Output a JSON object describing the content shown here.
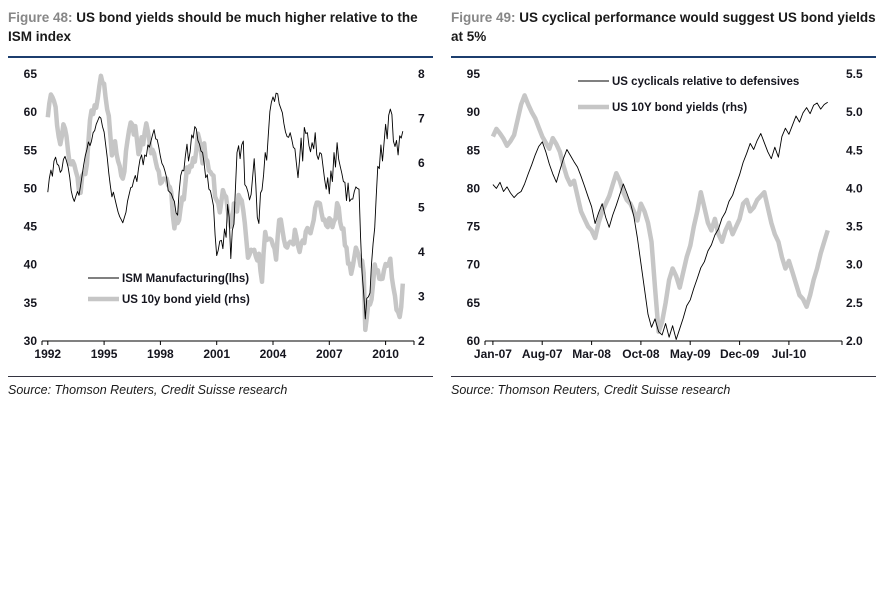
{
  "colors": {
    "accent_rule": "#1c3e6e",
    "figure_label": "#878787",
    "title_text": "#1a1a1a",
    "axis_text": "#15151e",
    "axis_line": "#000000",
    "black_series": "#000000",
    "gray_series": "#c6c6c6",
    "source_rule": "#333340",
    "source_text": "#1a1a1a"
  },
  "figures": [
    {
      "label_prefix": "Figure 48:",
      "title": "US bond yields should be much higher relative to the ISM index",
      "source": "Source: Thomson Reuters, Credit Suisse research"
    },
    {
      "label_prefix": "Figure 49:",
      "title": "US cyclical performance would suggest US bond yields at 5%",
      "source": "Source: Thomson Reuters, Credit Suisse research"
    }
  ],
  "chart_data": [
    {
      "type": "line",
      "title": "US bond yields should be much higher relative to the ISM index",
      "grid": false,
      "xlim": [
        1991.8,
        2011.3
      ],
      "x_tick_values": [
        1992,
        1995,
        1998,
        2001,
        2004,
        2007,
        2010
      ],
      "x_tick_labels": [
        "1992",
        "1995",
        "1998",
        "2001",
        "2004",
        "2007",
        "2010"
      ],
      "left_axis": {
        "min": 30,
        "max": 65,
        "tick_values": [
          30,
          35,
          40,
          45,
          50,
          55,
          60,
          65
        ],
        "tick_labels": [
          "30",
          "35",
          "40",
          "45",
          "50",
          "55",
          "60",
          "65"
        ]
      },
      "right_axis": {
        "min": 2,
        "max": 8,
        "tick_values": [
          2,
          3,
          4,
          5,
          6,
          7,
          8
        ],
        "tick_labels": [
          "2",
          "3",
          "4",
          "5",
          "6",
          "7",
          "8"
        ]
      },
      "legend": {
        "position": "inside-bottom-left"
      },
      "series": [
        {
          "name": "ISM Manufacturing(lhs)",
          "axis": "left",
          "style": "thin-black",
          "x_start": 1992.0,
          "x_step": 0.0833333,
          "values": [
            49.5,
            51.3,
            52.4,
            51.6,
            53.6,
            54.1,
            53.2,
            53.0,
            52.1,
            52.4,
            53.8,
            54.2,
            53.6,
            52.8,
            51.5,
            49.7,
            48.8,
            48.3,
            49.0,
            49.6,
            49.1,
            50.4,
            51.8,
            53.1,
            54.3,
            55.1,
            56.1,
            55.6,
            56.2,
            57.3,
            57.6,
            58.4,
            58.9,
            59.4,
            59.2,
            58.1,
            57.4,
            55.8,
            54.1,
            52.0,
            50.4,
            48.9,
            49.5,
            48.6,
            47.7,
            46.9,
            46.3,
            45.9,
            45.5,
            46.2,
            46.9,
            48.3,
            49.2,
            50.1,
            50.2,
            51.1,
            51.7,
            50.9,
            52.6,
            53.8,
            54.4,
            53.1,
            54.4,
            54.2,
            55.7,
            55.4,
            56.2,
            57.0,
            57.7,
            56.5,
            56.4,
            55.4,
            54.2,
            53.3,
            52.9,
            52.2,
            51.4,
            49.7,
            49.5,
            49.3,
            48.7,
            48.3,
            46.8,
            46.5,
            49.5,
            51.7,
            52.4,
            52.3,
            54.3,
            55.8,
            53.6,
            54.8,
            57.0,
            56.6,
            58.1,
            57.8,
            56.3,
            55.8,
            54.9,
            54.7,
            53.2,
            51.4,
            51.8,
            49.9,
            49.7,
            48.7,
            47.7,
            43.9,
            41.2,
            41.9,
            43.1,
            43.2,
            42.1,
            44.7,
            43.6,
            47.9,
            46.2,
            40.8,
            44.5,
            45.3,
            49.9,
            54.7,
            55.6,
            53.9,
            55.7,
            56.2,
            50.5,
            50.2,
            49.5,
            48.5,
            49.2,
            51.6,
            53.9,
            50.5,
            46.2,
            45.4,
            49.4,
            49.8,
            51.8,
            54.7,
            53.7,
            57.0,
            60.1,
            61.3,
            62.0,
            61.4,
            62.5,
            62.4,
            61.1,
            60.5,
            59.9,
            58.5,
            57.4,
            56.8,
            56.7,
            57.3,
            56.4,
            55.4,
            55.2,
            53.3,
            51.4,
            53.8,
            56.6,
            53.6,
            58.0,
            57.2,
            57.3,
            55.6,
            54.8,
            56.0,
            55.2,
            57.3,
            54.4,
            53.8,
            54.7,
            54.5,
            52.9,
            51.2,
            49.9,
            51.4,
            49.3,
            52.3,
            50.9,
            54.7,
            52.8,
            56.0,
            53.8,
            52.9,
            52.0,
            50.9,
            50.8,
            48.4,
            50.7,
            48.3,
            48.6,
            48.6,
            49.6,
            50.2,
            50.0,
            49.9,
            43.5,
            38.9,
            36.2,
            32.9,
            35.6,
            35.8,
            36.3,
            40.1,
            42.8,
            44.8,
            48.9,
            52.9,
            52.6,
            55.7,
            53.6,
            55.9,
            58.4,
            56.5,
            59.6,
            60.4,
            59.7,
            56.2,
            55.5,
            56.3,
            54.4,
            56.9,
            56.6,
            57.5
          ]
        },
        {
          "name": "US 10y bond yield (rhs)",
          "axis": "right",
          "style": "thick-gray",
          "x_start": 1992.0,
          "x_step": 0.0833333,
          "values": [
            7.03,
            7.34,
            7.54,
            7.48,
            7.39,
            7.26,
            6.84,
            6.59,
            6.42,
            6.59,
            6.87,
            6.77,
            6.6,
            6.26,
            5.98,
            5.97,
            6.04,
            5.96,
            5.81,
            5.68,
            5.36,
            5.33,
            5.72,
            5.77,
            5.75,
            5.97,
            6.48,
            6.97,
            7.18,
            7.1,
            7.3,
            7.24,
            7.46,
            7.74,
            7.96,
            7.81,
            7.78,
            7.47,
            7.2,
            7.06,
            6.63,
            6.17,
            6.28,
            6.49,
            6.2,
            6.04,
            5.93,
            5.71,
            5.65,
            5.81,
            6.27,
            6.51,
            6.74,
            6.91,
            6.87,
            6.64,
            6.83,
            6.53,
            6.2,
            6.3,
            6.58,
            6.42,
            6.69,
            6.89,
            6.71,
            6.49,
            6.22,
            6.3,
            6.21,
            6.03,
            5.88,
            5.81,
            5.54,
            5.57,
            5.65,
            5.64,
            5.65,
            5.5,
            5.46,
            5.34,
            4.81,
            4.53,
            4.83,
            4.65,
            4.72,
            5.0,
            5.23,
            5.18,
            5.54,
            5.9,
            5.79,
            5.94,
            5.92,
            6.11,
            6.03,
            6.28,
            6.66,
            6.52,
            6.26,
            5.99,
            6.44,
            6.1,
            6.05,
            5.83,
            5.8,
            5.74,
            5.72,
            5.24,
            5.16,
            5.1,
            4.89,
            5.14,
            5.39,
            5.28,
            5.24,
            4.97,
            4.73,
            4.57,
            4.65,
            5.09,
            5.04,
            4.91,
            5.28,
            5.21,
            5.16,
            4.93,
            4.65,
            4.26,
            3.87,
            3.94,
            4.05,
            4.03,
            4.05,
            3.9,
            3.81,
            3.96,
            3.57,
            3.33,
            3.98,
            4.45,
            4.27,
            4.29,
            4.3,
            4.27,
            4.15,
            4.08,
            3.83,
            4.35,
            4.72,
            4.73,
            4.5,
            4.28,
            4.13,
            4.1,
            4.19,
            4.23,
            4.22,
            4.17,
            4.5,
            4.34,
            4.14,
            4.0,
            4.18,
            4.26,
            4.2,
            4.46,
            4.54,
            4.47,
            4.42,
            4.57,
            4.72,
            4.99,
            5.11,
            5.11,
            5.09,
            4.88,
            4.72,
            4.73,
            4.6,
            4.56,
            4.76,
            4.72,
            4.56,
            4.69,
            4.75,
            5.1,
            5.0,
            4.67,
            4.52,
            4.53,
            4.15,
            4.1,
            3.74,
            3.74,
            3.51,
            3.68,
            3.88,
            4.1,
            4.01,
            3.89,
            3.69,
            3.81,
            3.53,
            2.25,
            2.52,
            2.87,
            2.82,
            2.93,
            3.29,
            3.72,
            3.56,
            3.59,
            3.4,
            3.39,
            3.4,
            3.59,
            3.73,
            3.69,
            3.73,
            3.85,
            3.42,
            3.2,
            3.01,
            2.7,
            2.65,
            2.54,
            2.76,
            3.29
          ]
        }
      ]
    },
    {
      "type": "line",
      "title": "US cyclical performance would suggest US bond yields at 5%",
      "grid": false,
      "xlim": [
        2006.93,
        2011.08
      ],
      "x_tick_values": [
        2007.0,
        2007.583,
        2008.167,
        2008.75,
        2009.333,
        2009.917,
        2010.5
      ],
      "x_tick_labels": [
        "Jan-07",
        "Aug-07",
        "Mar-08",
        "Oct-08",
        "May-09",
        "Dec-09",
        "Jul-10"
      ],
      "left_axis": {
        "min": 60,
        "max": 95,
        "tick_values": [
          60,
          65,
          70,
          75,
          80,
          85,
          90,
          95
        ],
        "tick_labels": [
          "60",
          "65",
          "70",
          "75",
          "80",
          "85",
          "90",
          "95"
        ]
      },
      "right_axis": {
        "min": 2.0,
        "max": 5.5,
        "tick_values": [
          2.0,
          2.5,
          3.0,
          3.5,
          4.0,
          4.5,
          5.0,
          5.5
        ],
        "tick_labels": [
          "2.0",
          "2.5",
          "3.0",
          "3.5",
          "4.0",
          "4.5",
          "5.0",
          "5.5"
        ]
      },
      "legend": {
        "position": "inside-top-center"
      },
      "series": [
        {
          "name": "US cyclicals relative to defensives",
          "axis": "left",
          "style": "thin-black",
          "x_start": 2007.0,
          "x_step": 0.0416667,
          "values": [
            80.5,
            80.0,
            80.8,
            79.6,
            80.2,
            79.4,
            78.8,
            79.3,
            79.6,
            80.6,
            81.9,
            83.1,
            84.4,
            85.5,
            86.1,
            84.8,
            83.2,
            81.9,
            80.8,
            82.4,
            83.9,
            85.1,
            84.3,
            83.5,
            82.8,
            81.6,
            80.3,
            78.9,
            77.6,
            75.4,
            76.8,
            78.0,
            76.2,
            74.9,
            76.5,
            77.8,
            79.2,
            80.6,
            79.4,
            78.1,
            76.3,
            73.5,
            70.2,
            66.8,
            63.5,
            61.8,
            62.9,
            61.2,
            60.8,
            62.3,
            60.5,
            62.0,
            60.2,
            61.6,
            63.0,
            64.6,
            65.4,
            66.9,
            68.2,
            69.6,
            70.4,
            71.8,
            72.6,
            73.9,
            74.7,
            76.1,
            76.9,
            78.3,
            79.1,
            80.5,
            81.8,
            83.4,
            84.6,
            85.9,
            85.1,
            86.3,
            87.2,
            86.0,
            84.8,
            83.9,
            85.4,
            84.1,
            86.8,
            87.9,
            87.1,
            88.3,
            89.5,
            88.7,
            89.9,
            90.6,
            89.8,
            90.9,
            91.2,
            90.4,
            91.0,
            91.3
          ]
        },
        {
          "name": "US 10Y bond yields (rhs)",
          "axis": "right",
          "style": "thick-gray",
          "x_start": 2007.0,
          "x_step": 0.0416667,
          "values": [
            4.68,
            4.78,
            4.72,
            4.65,
            4.56,
            4.62,
            4.7,
            4.9,
            5.1,
            5.22,
            5.1,
            5.0,
            4.92,
            4.8,
            4.68,
            4.6,
            4.52,
            4.66,
            4.58,
            4.48,
            4.3,
            4.15,
            4.05,
            4.1,
            3.9,
            3.7,
            3.6,
            3.5,
            3.45,
            3.35,
            3.55,
            3.7,
            3.8,
            3.9,
            4.05,
            4.2,
            4.1,
            3.95,
            3.85,
            3.8,
            3.7,
            3.58,
            3.8,
            3.7,
            3.55,
            3.3,
            2.7,
            2.12,
            2.25,
            2.5,
            2.8,
            2.95,
            2.85,
            2.7,
            2.9,
            3.1,
            3.25,
            3.5,
            3.7,
            3.95,
            3.75,
            3.55,
            3.45,
            3.6,
            3.4,
            3.3,
            3.45,
            3.55,
            3.4,
            3.5,
            3.6,
            3.8,
            3.85,
            3.7,
            3.75,
            3.85,
            3.9,
            3.95,
            3.75,
            3.55,
            3.4,
            3.3,
            3.1,
            2.95,
            3.05,
            2.9,
            2.75,
            2.6,
            2.55,
            2.45,
            2.6,
            2.8,
            2.95,
            3.15,
            3.3,
            3.45
          ]
        }
      ]
    }
  ]
}
